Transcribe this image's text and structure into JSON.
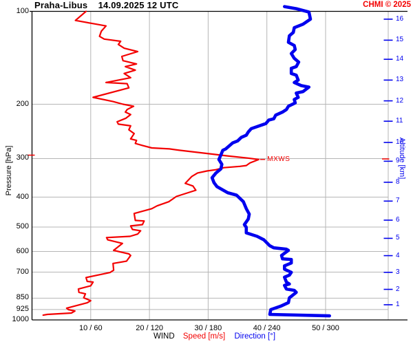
{
  "header": {
    "title": "Praha-Libus    14.09.2025 12 UTC",
    "copyright": "CHMI © 2025"
  },
  "legend": {
    "wind": "WIND",
    "speed": "Speed [m/s]",
    "direction": "Direction [°]"
  },
  "colors": {
    "speed": "#f30000",
    "direction": "#0000ee",
    "grid": "#b5b5b5",
    "axis": "#000000",
    "altitude": "#0000ee"
  },
  "chart_data": {
    "type": "line",
    "title": "Praha-Libus 14.09.2025 12 UTC",
    "y_axis": {
      "label": "Pressure [hPa]",
      "scale": "log",
      "domain": [
        100,
        1000
      ],
      "ticks": [
        100,
        200,
        300,
        400,
        500,
        600,
        700,
        850,
        925,
        1000
      ]
    },
    "x_axis": {
      "label": "WIND",
      "speed_label": "Speed [m/s]",
      "speed_unit": "m/s",
      "speed_ticks": [
        10,
        20,
        30,
        40,
        50
      ],
      "direction_label": "Direction [°]",
      "direction_unit": "°",
      "direction_ticks": [
        60,
        120,
        180,
        240,
        300
      ],
      "tick_labels": [
        "10 / 60",
        "20 / 120",
        "30 / 180",
        "40 / 240",
        "50 / 300"
      ],
      "grid": true
    },
    "altitude_axis": {
      "label": "Altitude [km]",
      "ticks": [
        {
          "km": 16,
          "p": 106
        },
        {
          "km": 15,
          "p": 124
        },
        {
          "km": 14,
          "p": 143
        },
        {
          "km": 13,
          "p": 167
        },
        {
          "km": 12,
          "p": 195
        },
        {
          "km": 11,
          "p": 227
        },
        {
          "km": 10,
          "p": 266
        },
        {
          "km": 9,
          "p": 306
        },
        {
          "km": 8,
          "p": 358
        },
        {
          "km": 7,
          "p": 412
        },
        {
          "km": 6,
          "p": 475
        },
        {
          "km": 5,
          "p": 544
        },
        {
          "km": 4,
          "p": 619
        },
        {
          "km": 3,
          "p": 701
        },
        {
          "km": 2,
          "p": 796
        },
        {
          "km": 1,
          "p": 893
        }
      ]
    },
    "annotations": [
      {
        "label": "MXWS",
        "pressure": 302,
        "speed": 38.6
      }
    ],
    "series": [
      {
        "name": "Speed [m/s]",
        "x_mapping": "speed",
        "color": "#f30000",
        "points": [
          [
            100,
            9.2
          ],
          [
            107,
            7.4
          ],
          [
            110,
            10.9
          ],
          [
            111.5,
            12.6
          ],
          [
            116,
            11.8
          ],
          [
            120.5,
            11.5
          ],
          [
            123,
            12.3
          ],
          [
            125,
            15.1
          ],
          [
            128,
            14.7
          ],
          [
            131.7,
            15.7
          ],
          [
            135,
            18.0
          ],
          [
            140,
            15.3
          ],
          [
            144.5,
            15.5
          ],
          [
            148,
            17.8
          ],
          [
            151,
            15.9
          ],
          [
            155,
            17.6
          ],
          [
            159,
            15.7
          ],
          [
            164,
            16.8
          ],
          [
            170,
            12.6
          ],
          [
            171.5,
            16.2
          ],
          [
            177,
            16.5
          ],
          [
            190,
            10.4
          ],
          [
            196,
            13.8
          ],
          [
            200,
            15.5
          ],
          [
            203,
            17.3
          ],
          [
            208,
            16.2
          ],
          [
            212,
            15.9
          ],
          [
            216,
            16.8
          ],
          [
            222,
            16.0
          ],
          [
            228,
            14.5
          ],
          [
            232,
            14.7
          ],
          [
            235,
            16.8
          ],
          [
            242,
            16.5
          ],
          [
            249,
            17.4
          ],
          [
            259,
            16.8
          ],
          [
            262,
            17.8
          ],
          [
            268,
            17.6
          ],
          [
            272,
            18.8
          ],
          [
            277,
            20.4
          ],
          [
            279,
            23.4
          ],
          [
            282,
            25.1
          ],
          [
            290,
            30.6
          ],
          [
            294,
            33.3
          ],
          [
            299,
            36.8
          ],
          [
            302,
            38.6
          ],
          [
            310,
            37.1
          ],
          [
            316,
            36.5
          ],
          [
            318,
            35.4
          ],
          [
            321,
            32.7
          ],
          [
            326,
            31.3
          ],
          [
            329,
            29.8
          ],
          [
            334,
            28.2
          ],
          [
            343,
            27.2
          ],
          [
            361,
            26.1
          ],
          [
            368,
            27.4
          ],
          [
            380,
            27.9
          ],
          [
            398,
            24.6
          ],
          [
            414,
            23.3
          ],
          [
            427,
            21.3
          ],
          [
            436,
            20.4
          ],
          [
            452,
            17.4
          ],
          [
            476,
            17.6
          ],
          [
            478,
            19.1
          ],
          [
            491,
            18.8
          ],
          [
            496,
            16.8
          ],
          [
            509,
            17.1
          ],
          [
            514,
            18.5
          ],
          [
            527,
            18.0
          ],
          [
            536,
            16.7
          ],
          [
            541,
            12.7
          ],
          [
            550,
            12.9
          ],
          [
            556,
            13.9
          ],
          [
            565,
            15.4
          ],
          [
            595,
            13.9
          ],
          [
            611,
            16.5
          ],
          [
            618,
            16.8
          ],
          [
            645,
            16.1
          ],
          [
            656,
            13.8
          ],
          [
            690,
            13.9
          ],
          [
            702,
            13.3
          ],
          [
            729,
            9.2
          ],
          [
            750,
            9.4
          ],
          [
            754,
            10.4
          ],
          [
            775,
            10.0
          ],
          [
            794,
            7.9
          ],
          [
            814,
            8.0
          ],
          [
            823,
            9.1
          ],
          [
            848,
            8.8
          ],
          [
            866,
            10.0
          ],
          [
            880,
            9.4
          ],
          [
            916,
            5.9
          ],
          [
            926,
            6.2
          ],
          [
            936,
            7.3
          ],
          [
            950,
            6.7
          ],
          [
            960,
            2.6
          ],
          [
            965,
            1.9
          ]
        ]
      },
      {
        "name": "Direction [°]",
        "x_mapping": "direction",
        "color": "#0000ee",
        "points": [
          [
            96.5,
            258
          ],
          [
            98,
            270
          ],
          [
            100.5,
            283
          ],
          [
            106,
            284.5
          ],
          [
            110,
            277
          ],
          [
            113,
            268
          ],
          [
            117,
            267
          ],
          [
            120,
            263
          ],
          [
            126,
            262
          ],
          [
            129,
            268
          ],
          [
            133,
            269
          ],
          [
            137,
            265
          ],
          [
            142,
            268
          ],
          [
            146,
            272.5
          ],
          [
            151,
            270
          ],
          [
            153,
            265
          ],
          [
            159,
            265
          ],
          [
            161,
            270
          ],
          [
            167,
            272
          ],
          [
            170,
            268
          ],
          [
            174,
            275
          ],
          [
            176,
            283
          ],
          [
            182,
            277
          ],
          [
            184,
            270
          ],
          [
            190,
            272
          ],
          [
            193,
            268
          ],
          [
            198,
            269
          ],
          [
            203,
            262
          ],
          [
            208,
            260
          ],
          [
            212,
            256
          ],
          [
            217,
            249
          ],
          [
            223,
            247
          ],
          [
            225,
            242
          ],
          [
            231,
            239
          ],
          [
            240,
            224
          ],
          [
            246,
            221
          ],
          [
            252,
            219
          ],
          [
            256,
            214
          ],
          [
            263,
            210
          ],
          [
            267,
            205
          ],
          [
            279,
            198
          ],
          [
            282,
            195
          ],
          [
            292,
            193
          ],
          [
            302,
            191
          ],
          [
            313,
            194
          ],
          [
            324,
            193
          ],
          [
            334,
            188
          ],
          [
            346,
            184
          ],
          [
            359,
            186
          ],
          [
            370,
            189
          ],
          [
            387,
            200
          ],
          [
            394,
            209
          ],
          [
            414,
            216
          ],
          [
            436,
            219
          ],
          [
            454,
            222
          ],
          [
            471,
            221
          ],
          [
            491,
            217
          ],
          [
            501,
            219
          ],
          [
            522,
            219
          ],
          [
            536,
            230
          ],
          [
            550,
            237
          ],
          [
            575,
            243
          ],
          [
            584,
            247
          ],
          [
            590,
            260
          ],
          [
            595,
            262
          ],
          [
            618,
            255
          ],
          [
            634,
            256
          ],
          [
            637,
            265
          ],
          [
            654,
            265
          ],
          [
            668,
            258
          ],
          [
            685,
            258
          ],
          [
            701,
            265
          ],
          [
            716,
            263
          ],
          [
            727,
            258
          ],
          [
            754,
            260
          ],
          [
            765,
            263
          ],
          [
            773,
            258
          ],
          [
            794,
            260
          ],
          [
            802,
            268
          ],
          [
            814,
            270
          ],
          [
            848,
            263
          ],
          [
            879,
            262
          ],
          [
            903,
            254
          ],
          [
            926,
            244
          ],
          [
            960,
            243
          ],
          [
            970,
            304
          ]
        ]
      }
    ]
  }
}
